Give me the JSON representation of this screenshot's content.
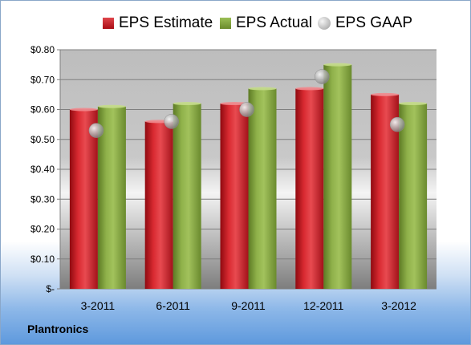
{
  "chart_data": {
    "type": "bar",
    "categories": [
      "3-2011",
      "6-2011",
      "9-2011",
      "12-2011",
      "3-2012"
    ],
    "series": [
      {
        "name": "EPS Estimate",
        "type": "bar",
        "color": "#c0141c",
        "values": [
          0.6,
          0.56,
          0.62,
          0.67,
          0.65
        ]
      },
      {
        "name": "EPS Actual",
        "type": "bar",
        "color": "#7a9a3a",
        "values": [
          0.61,
          0.62,
          0.67,
          0.75,
          0.62
        ]
      },
      {
        "name": "EPS GAAP",
        "type": "scatter",
        "color": "#b0b0b0",
        "values": [
          0.53,
          0.56,
          0.6,
          0.71,
          0.55
        ]
      }
    ],
    "yticks": [
      "$-",
      "$0.10",
      "$0.20",
      "$0.30",
      "$0.40",
      "$0.50",
      "$0.60",
      "$0.70",
      "$0.80"
    ],
    "ylim": [
      0,
      0.8
    ],
    "legend_position": "top",
    "grid": true
  },
  "company": "Plantronics"
}
